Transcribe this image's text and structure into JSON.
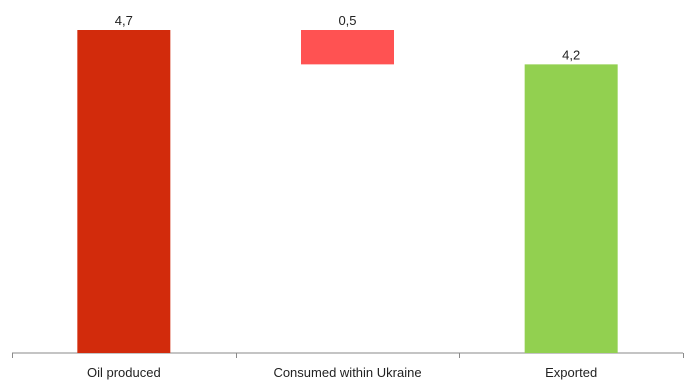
{
  "chart_data": {
    "type": "bar",
    "subtype": "waterfall",
    "categories": [
      "Oil produced",
      "Consumed within Ukraine",
      "Exported"
    ],
    "bars": [
      {
        "category": "Oil produced",
        "start": 0,
        "end": 4.7,
        "label": "4,7",
        "color": "#d22b0c"
      },
      {
        "category": "Consumed within Ukraine",
        "start": 4.2,
        "end": 4.7,
        "label": "0,5",
        "color": "#ff5252"
      },
      {
        "category": "Exported",
        "start": 0,
        "end": 4.2,
        "label": "4,2",
        "color": "#92d050"
      }
    ],
    "ylim": [
      0,
      4.7
    ],
    "grid": false,
    "legend": "none"
  }
}
